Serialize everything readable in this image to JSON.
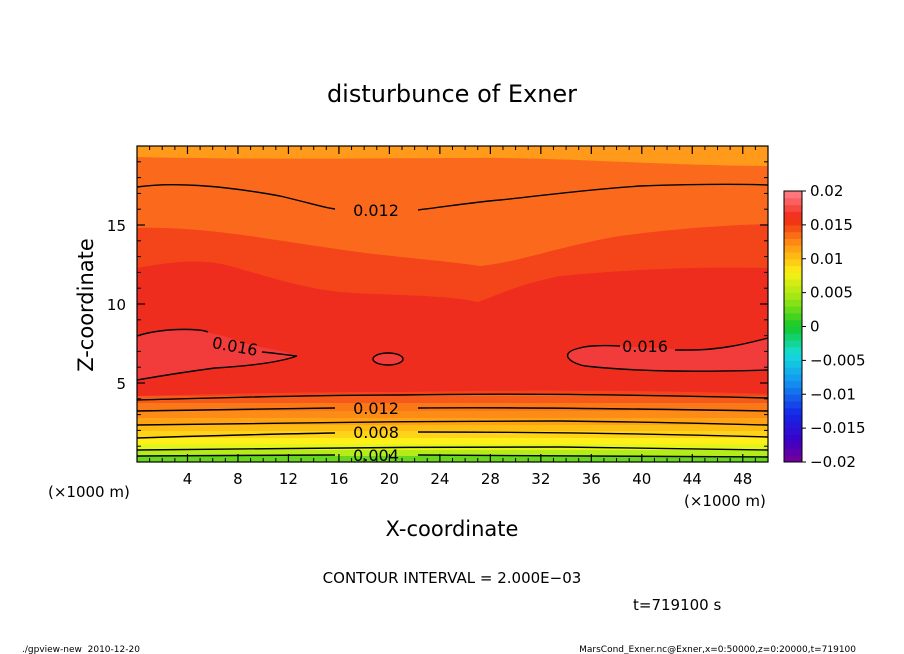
{
  "chart_data": {
    "type": "contour",
    "title": "disturbunce of Exner",
    "xlabel": "X-coordinate",
    "ylabel": "Z-coordinate",
    "x_unit": "(×1000 m)",
    "z_unit": "(×1000 m)",
    "xlim": [
      0,
      50
    ],
    "ylim": [
      0,
      20
    ],
    "x_ticks": [
      4,
      8,
      12,
      16,
      20,
      24,
      28,
      32,
      36,
      40,
      44,
      48
    ],
    "y_ticks": [
      5,
      10,
      15
    ],
    "contour_interval_text": "CONTOUR INTERVAL = 2.000E−03",
    "time_text": "t=719100 s",
    "footer_left": "./gpview-new  2010-12-20",
    "footer_right": "MarsCond_Exner.nc@Exner,x=0:50000,z=0:20000,t=719100",
    "colorbar": {
      "ticks": [
        0.02,
        0.015,
        0.01,
        0.005,
        0,
        -0.005,
        -0.01,
        -0.015,
        -0.02
      ],
      "tick_labels": [
        "0.02",
        "0.015",
        "0.01",
        "0.005",
        "0",
        "−0.005",
        "−0.01",
        "−0.015",
        "−0.02"
      ],
      "range": [
        -0.02,
        0.02
      ]
    },
    "contour_labels": [
      {
        "text": "0.012",
        "x": 16.5,
        "z": 15.7
      },
      {
        "text": "0.016",
        "x": 6.5,
        "z": 7.3
      },
      {
        "text": "0.016",
        "x": 40.5,
        "z": 7.4
      },
      {
        "text": "0.012",
        "x": 16.5,
        "z": 3.5
      },
      {
        "text": "0.008",
        "x": 16.5,
        "z": 2.0
      },
      {
        "text": "0.004",
        "x": 16.5,
        "z": 0.6
      }
    ],
    "profile_by_height": [
      {
        "z": 0.0,
        "value": 0.003
      },
      {
        "z": 0.6,
        "value": 0.004
      },
      {
        "z": 1.2,
        "value": 0.006
      },
      {
        "z": 2.0,
        "value": 0.008
      },
      {
        "z": 2.8,
        "value": 0.01
      },
      {
        "z": 3.5,
        "value": 0.012
      },
      {
        "z": 4.2,
        "value": 0.014
      },
      {
        "z": 5.5,
        "value": 0.0155
      },
      {
        "z": 7.0,
        "value": 0.016
      },
      {
        "z": 9.0,
        "value": 0.0158
      },
      {
        "z": 11.0,
        "value": 0.0152
      },
      {
        "z": 12.5,
        "value": 0.014
      },
      {
        "z": 15.0,
        "value": 0.013
      },
      {
        "z": 17.5,
        "value": 0.012
      },
      {
        "z": 19.0,
        "value": 0.011
      },
      {
        "z": 20.0,
        "value": 0.01
      }
    ]
  }
}
